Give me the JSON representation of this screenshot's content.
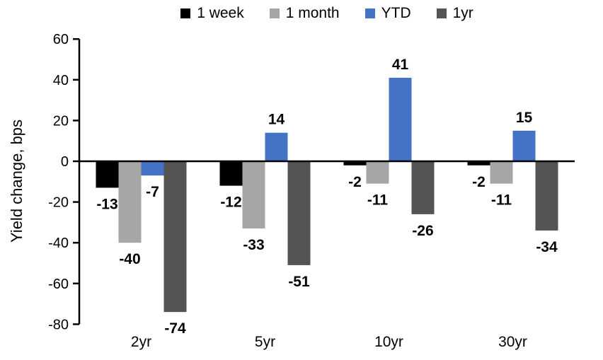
{
  "chart_data": {
    "type": "bar",
    "title": "",
    "xlabel": "",
    "ylabel": "Yield change, bps",
    "categories": [
      "2yr",
      "5yr",
      "10yr",
      "30yr"
    ],
    "series": [
      {
        "name": "1 week",
        "color": "#000000",
        "values": [
          -13,
          -12,
          -2,
          -2
        ]
      },
      {
        "name": "1 month",
        "color": "#A6A6A6",
        "values": [
          -40,
          -33,
          -11,
          -11
        ]
      },
      {
        "name": "YTD",
        "color": "#4472C4",
        "values": [
          -7,
          14,
          41,
          15
        ]
      },
      {
        "name": "1yr",
        "color": "#545454",
        "values": [
          -74,
          -51,
          -26,
          -34
        ]
      }
    ],
    "ylim": [
      -80,
      60
    ],
    "y_ticks": [
      60,
      40,
      20,
      0,
      -20,
      -40,
      -60,
      -80
    ],
    "grid": false,
    "legend_position": "top",
    "data_labels": true,
    "axis_color": "#000000"
  }
}
